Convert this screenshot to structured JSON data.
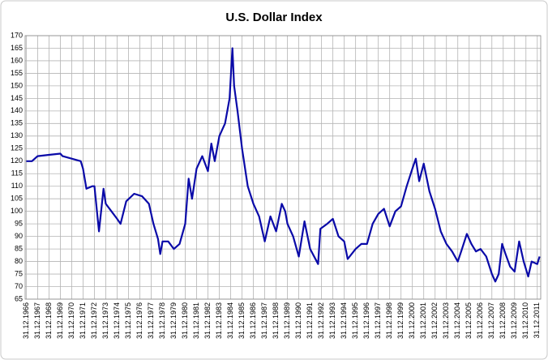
{
  "chart_data": {
    "type": "line",
    "title": "U.S. Dollar Index",
    "series": [
      {
        "name": null,
        "color": "#0a0aa8",
        "x": [
          1967.0,
          1967.5,
          1968.0,
          1969.0,
          1970.0,
          1970.2,
          1971.0,
          1971.8,
          1972.0,
          1972.3,
          1972.8,
          1973.0,
          1973.2,
          1973.4,
          1973.8,
          1974.0,
          1974.5,
          1975.0,
          1975.3,
          1975.8,
          1976.5,
          1977.2,
          1977.8,
          1978.2,
          1978.6,
          1978.8,
          1979.0,
          1979.5,
          1980.0,
          1980.5,
          1981.0,
          1981.3,
          1981.6,
          1982.0,
          1982.5,
          1983.0,
          1983.3,
          1983.6,
          1984.0,
          1984.5,
          1984.9,
          1985.15,
          1985.3,
          1985.6,
          1986.0,
          1986.5,
          1987.0,
          1987.5,
          1988.0,
          1988.5,
          1989.0,
          1989.5,
          1989.8,
          1990.0,
          1990.5,
          1991.0,
          1991.5,
          1992.0,
          1992.7,
          1992.9,
          1993.5,
          1994.0,
          1994.5,
          1995.0,
          1995.3,
          1996.0,
          1996.5,
          1997.0,
          1997.5,
          1998.0,
          1998.5,
          1999.0,
          1999.5,
          2000.0,
          2000.5,
          2001.0,
          2001.3,
          2001.6,
          2002.0,
          2002.5,
          2003.0,
          2003.5,
          2004.0,
          2004.5,
          2005.0,
          2005.3,
          2005.8,
          2006.2,
          2006.6,
          2007.0,
          2007.5,
          2008.0,
          2008.3,
          2008.6,
          2008.9,
          2009.2,
          2009.6,
          2010.0,
          2010.4,
          2010.8,
          2011.2,
          2011.5,
          2012.0,
          2012.2
        ],
        "values": [
          120,
          120,
          122,
          122.5,
          123,
          122,
          121,
          120,
          117,
          109,
          110,
          110,
          101,
          92,
          109,
          103,
          100,
          97,
          95,
          104,
          107,
          106,
          103,
          95,
          89,
          83,
          88,
          88,
          85,
          87,
          95,
          113,
          105,
          117,
          122,
          116,
          127,
          120,
          130,
          135,
          145,
          165,
          150,
          140,
          125,
          110,
          103,
          98,
          88,
          98,
          92,
          103,
          100,
          95,
          90,
          82,
          96,
          85,
          79,
          93,
          95,
          97,
          90,
          88,
          81,
          85,
          87,
          87,
          95,
          99,
          101,
          94,
          100,
          102,
          110,
          117,
          121,
          112,
          119,
          108,
          101,
          92,
          87,
          84,
          80,
          84,
          91,
          87,
          84,
          85,
          82,
          75,
          72,
          75,
          87,
          83,
          78,
          76,
          88,
          80,
          74,
          80,
          79,
          82
        ]
      }
    ],
    "xlim": [
      1966.9,
      2012.3
    ],
    "xticks": [
      {
        "value": 1967,
        "label": "31.12.1966"
      },
      {
        "value": 1968,
        "label": "31.12.1967"
      },
      {
        "value": 1969,
        "label": "31.12.1968"
      },
      {
        "value": 1970,
        "label": "31.12.1969"
      },
      {
        "value": 1971,
        "label": "31.12.1970"
      },
      {
        "value": 1972,
        "label": "31.12.1971"
      },
      {
        "value": 1973,
        "label": "31.12.1972"
      },
      {
        "value": 1974,
        "label": "31.12.1973"
      },
      {
        "value": 1975,
        "label": "31.12.1974"
      },
      {
        "value": 1976,
        "label": "31.12.1975"
      },
      {
        "value": 1977,
        "label": "31.12.1976"
      },
      {
        "value": 1978,
        "label": "31.12.1977"
      },
      {
        "value": 1979,
        "label": "31.12.1978"
      },
      {
        "value": 1980,
        "label": "31.12.1979"
      },
      {
        "value": 1981,
        "label": "31.12.1980"
      },
      {
        "value": 1982,
        "label": "31.12.1981"
      },
      {
        "value": 1983,
        "label": "31.12.1982"
      },
      {
        "value": 1984,
        "label": "31.12.1983"
      },
      {
        "value": 1985,
        "label": "31.12.1984"
      },
      {
        "value": 1986,
        "label": "31.12.1985"
      },
      {
        "value": 1987,
        "label": "31.12.1986"
      },
      {
        "value": 1988,
        "label": "31.12.1987"
      },
      {
        "value": 1989,
        "label": "31.12.1988"
      },
      {
        "value": 1990,
        "label": "31.12.1989"
      },
      {
        "value": 1991,
        "label": "31.12.1990"
      },
      {
        "value": 1992,
        "label": "31.12.1991"
      },
      {
        "value": 1993,
        "label": "31.12.1992"
      },
      {
        "value": 1994,
        "label": "31.12.1993"
      },
      {
        "value": 1995,
        "label": "31.12.1994"
      },
      {
        "value": 1996,
        "label": "31.12.1995"
      },
      {
        "value": 1997,
        "label": "31.12.1996"
      },
      {
        "value": 1998,
        "label": "31.12.1997"
      },
      {
        "value": 1999,
        "label": "31.12.1998"
      },
      {
        "value": 2000,
        "label": "31.12.1999"
      },
      {
        "value": 2001,
        "label": "31.12.2000"
      },
      {
        "value": 2002,
        "label": "31.12.2001"
      },
      {
        "value": 2003,
        "label": "31.12.2002"
      },
      {
        "value": 2004,
        "label": "31.12.2003"
      },
      {
        "value": 2005,
        "label": "31.12.2004"
      },
      {
        "value": 2006,
        "label": "31.12.2005"
      },
      {
        "value": 2007,
        "label": "31.12.2006"
      },
      {
        "value": 2008,
        "label": "31.12.2007"
      },
      {
        "value": 2009,
        "label": "31.12.2008"
      },
      {
        "value": 2010,
        "label": "31.12.2009"
      },
      {
        "value": 2011,
        "label": "31.12.2010"
      },
      {
        "value": 2012,
        "label": "31.12.2011"
      }
    ],
    "ylim": [
      65,
      170
    ],
    "yticks": [
      65,
      70,
      75,
      80,
      85,
      90,
      95,
      100,
      105,
      110,
      115,
      120,
      125,
      130,
      135,
      140,
      145,
      150,
      155,
      160,
      165,
      170
    ],
    "grid": true
  }
}
